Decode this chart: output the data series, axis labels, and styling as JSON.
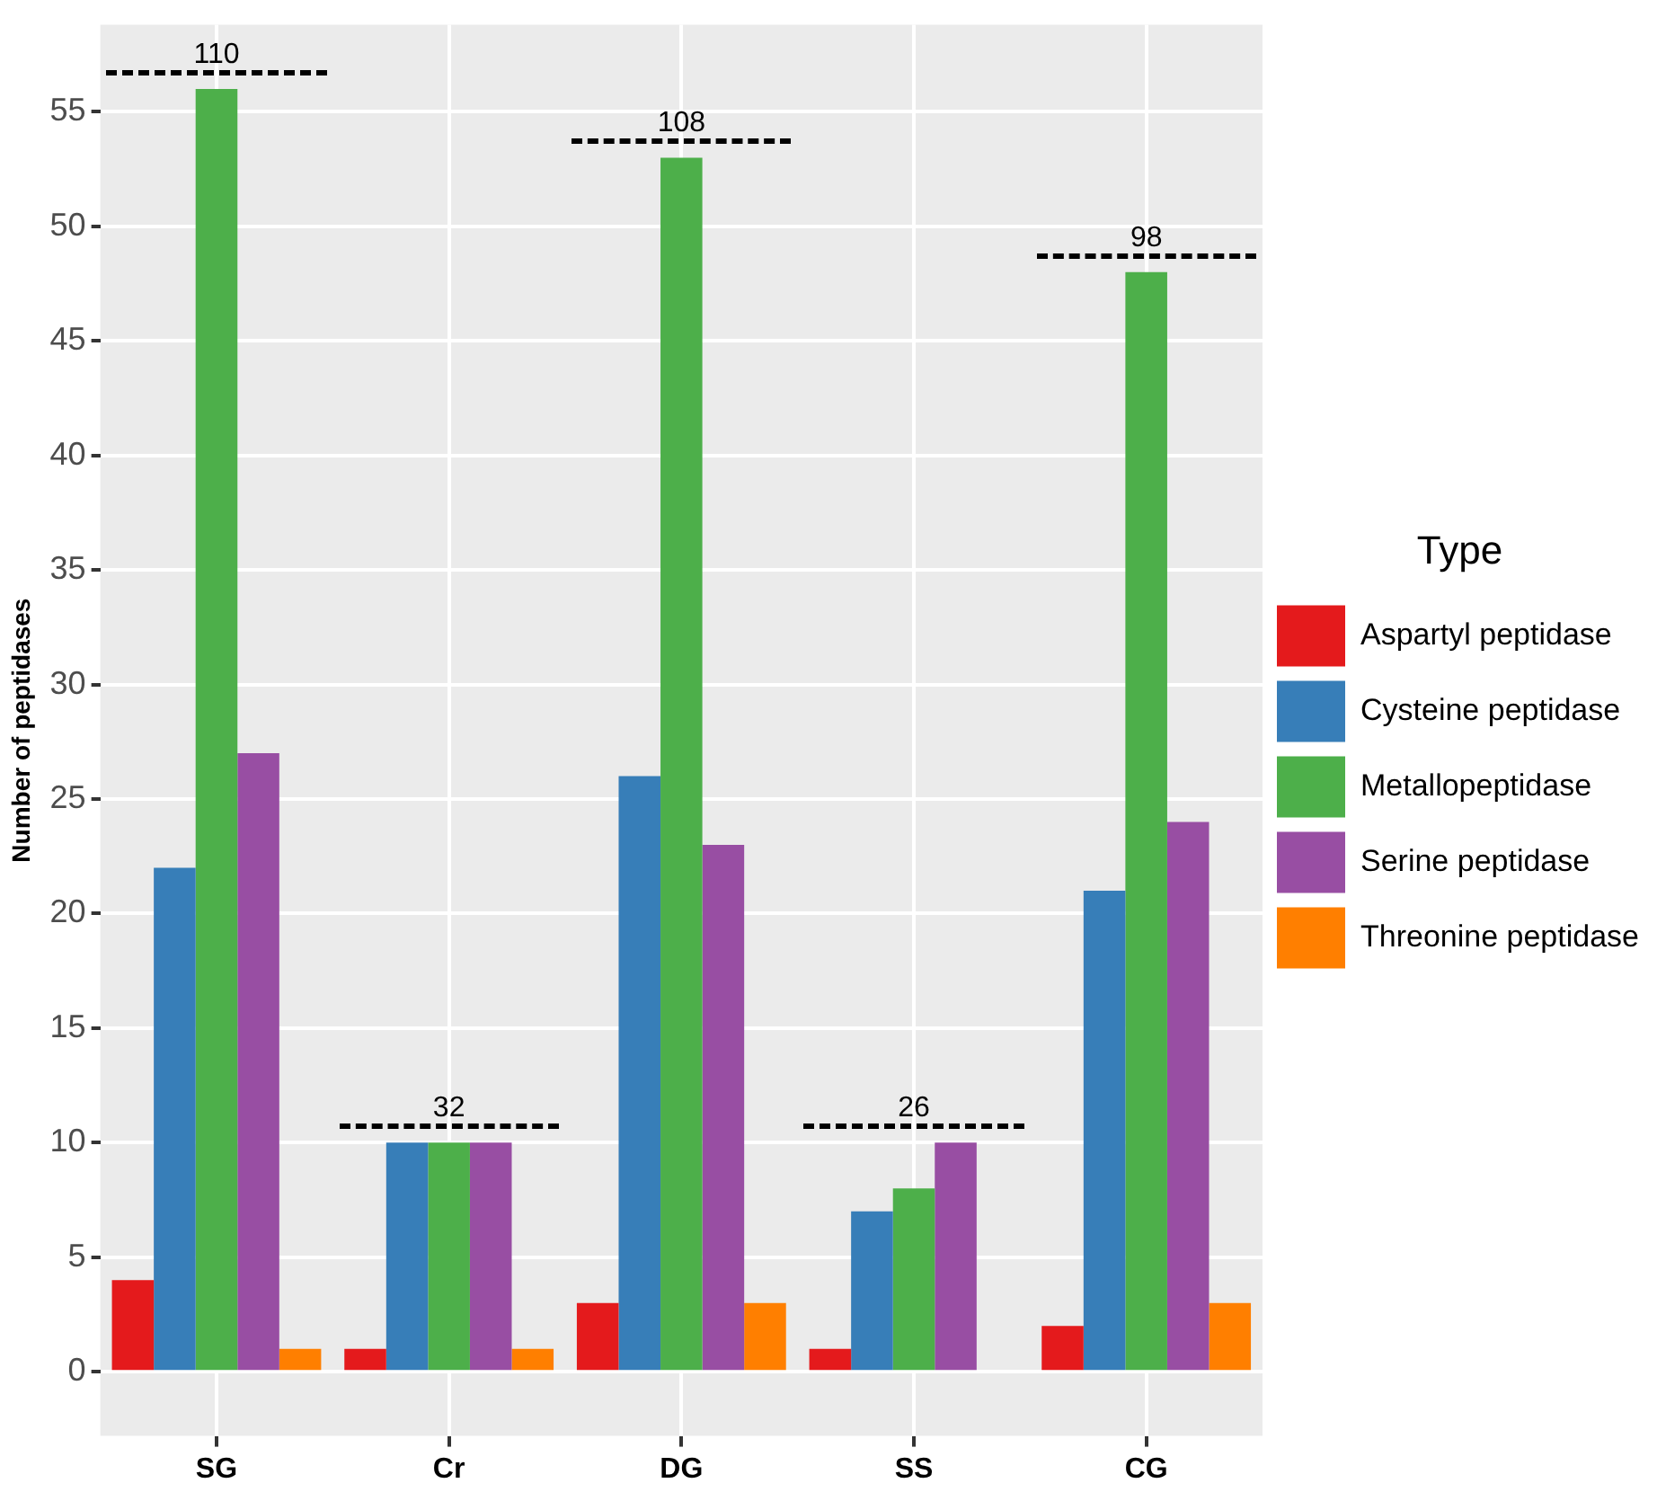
{
  "chart_data": {
    "type": "bar",
    "ylabel": "Number of peptidases",
    "legend_title": "Type",
    "categories": [
      "SG",
      "Cr",
      "DG",
      "SS",
      "CG"
    ],
    "series": [
      {
        "name": "Aspartyl peptidase",
        "color": "#e41a1c",
        "values": [
          4,
          1,
          3,
          1,
          2
        ]
      },
      {
        "name": "Cysteine peptidase",
        "color": "#377eb8",
        "values": [
          22,
          10,
          26,
          7,
          21
        ]
      },
      {
        "name": "Metallopeptidase",
        "color": "#4daf4a",
        "values": [
          56,
          10,
          53,
          8,
          48
        ]
      },
      {
        "name": "Serine peptidase",
        "color": "#984ea3",
        "values": [
          27,
          10,
          23,
          10,
          24
        ]
      },
      {
        "name": "Threonine peptidase",
        "color": "#ff7f00",
        "values": [
          1,
          1,
          3,
          0,
          3
        ]
      }
    ],
    "totals": [
      "110",
      "32",
      "108",
      "26",
      "98"
    ],
    "ylim": [
      -2.8,
      58.8
    ],
    "yticks": [
      0,
      5,
      10,
      15,
      20,
      25,
      30,
      35,
      40,
      45,
      50,
      55
    ],
    "grid": true,
    "legend": "right"
  }
}
